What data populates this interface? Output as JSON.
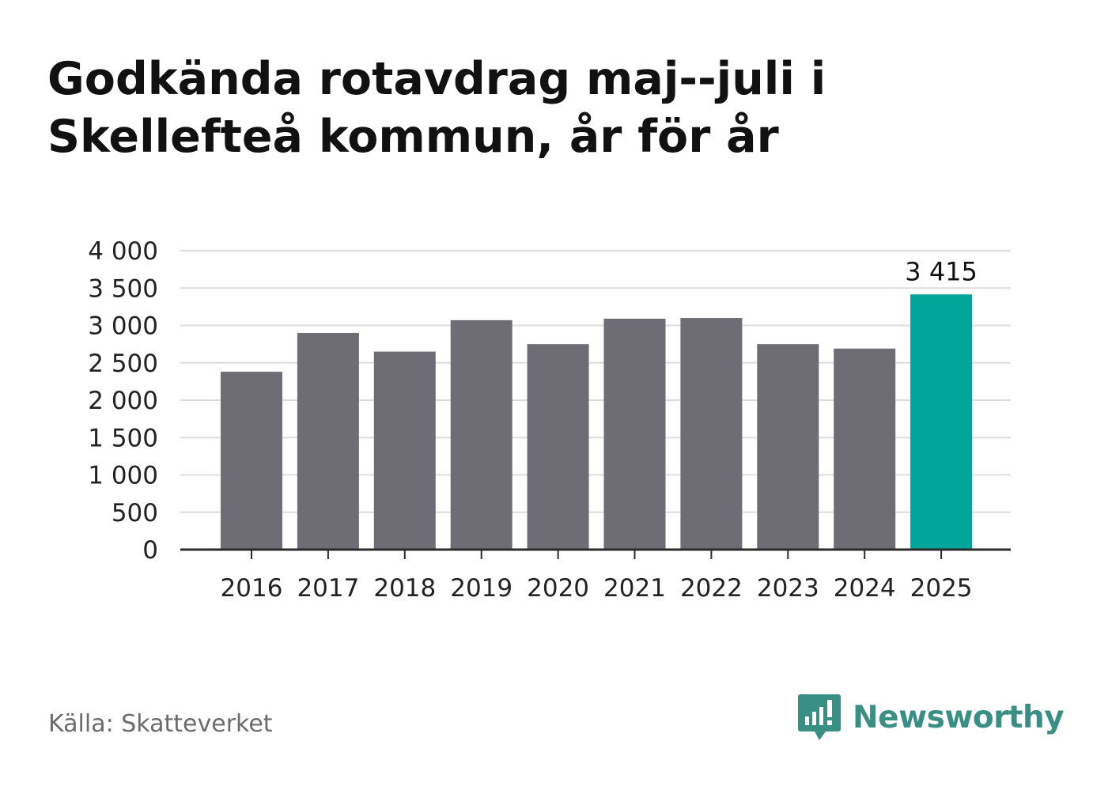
{
  "title": "Godkända rotavdrag maj--juli i Skellefteå kommun, år för år",
  "source": "Källa: Skatteverket",
  "brand": {
    "name": "Newsworthy",
    "icon": "newsworthy-logo-icon",
    "color": "#3a8f84"
  },
  "colors": {
    "bar": "#6e6d75",
    "highlight": "#00a59a",
    "grid": "#dddddd",
    "axis": "#2b2b2b",
    "text": "#222222"
  },
  "chart_data": {
    "type": "bar",
    "categories": [
      "2016",
      "2017",
      "2018",
      "2019",
      "2020",
      "2021",
      "2022",
      "2023",
      "2024",
      "2025"
    ],
    "values": [
      2380,
      2900,
      2650,
      3070,
      2750,
      3090,
      3100,
      2750,
      2690,
      3415
    ],
    "highlight_index": 9,
    "data_labels": {
      "9": "3 415"
    },
    "yticks": [
      0,
      500,
      1000,
      1500,
      2000,
      2500,
      3000,
      3500,
      4000
    ],
    "ytick_labels": [
      "0",
      "500",
      "1 000",
      "1 500",
      "2 000",
      "2 500",
      "3 000",
      "3 500",
      "4 000"
    ],
    "ylim": [
      0,
      4000
    ],
    "grid": true,
    "legend": "none",
    "xlabel": "",
    "ylabel": ""
  }
}
